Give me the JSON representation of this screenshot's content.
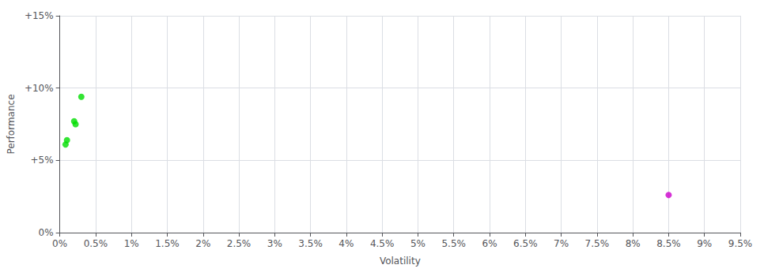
{
  "chart_data": {
    "type": "scatter",
    "xlabel": "Volatility",
    "ylabel": "Performance",
    "series": [
      {
        "color": "#00dd00",
        "marker": "circle",
        "x": [
          0.003,
          0.002,
          0.0022,
          0.001,
          0.0008
        ],
        "y": [
          0.094,
          0.077,
          0.075,
          0.064,
          0.061
        ]
      },
      {
        "color": "#cc00cc",
        "marker": "circle",
        "x": [
          0.085
        ],
        "y": [
          0.026
        ]
      }
    ],
    "xlim": [
      0,
      0.095
    ],
    "ylim": [
      0,
      0.15
    ],
    "xticks": [
      {
        "value": 0.0,
        "label": "0%"
      },
      {
        "value": 0.005,
        "label": "0.5%"
      },
      {
        "value": 0.01,
        "label": "1%"
      },
      {
        "value": 0.015,
        "label": "1.5%"
      },
      {
        "value": 0.02,
        "label": "2%"
      },
      {
        "value": 0.025,
        "label": "2.5%"
      },
      {
        "value": 0.03,
        "label": "3%"
      },
      {
        "value": 0.035,
        "label": "3.5%"
      },
      {
        "value": 0.04,
        "label": "4%"
      },
      {
        "value": 0.045,
        "label": "4.5%"
      },
      {
        "value": 0.05,
        "label": "5%"
      },
      {
        "value": 0.055,
        "label": "5.5%"
      },
      {
        "value": 0.06,
        "label": "6%"
      },
      {
        "value": 0.065,
        "label": "6.5%"
      },
      {
        "value": 0.07,
        "label": "7%"
      },
      {
        "value": 0.075,
        "label": "7.5%"
      },
      {
        "value": 0.08,
        "label": "8%"
      },
      {
        "value": 0.085,
        "label": "8.5%"
      },
      {
        "value": 0.09,
        "label": "9%"
      },
      {
        "value": 0.095,
        "label": "9.5%"
      }
    ],
    "yticks": [
      {
        "value": 0.0,
        "label": "0%"
      },
      {
        "value": 0.05,
        "label": "+5%"
      },
      {
        "value": 0.1,
        "label": "+10%"
      },
      {
        "value": 0.15,
        "label": "+15%"
      }
    ],
    "grid": true
  }
}
